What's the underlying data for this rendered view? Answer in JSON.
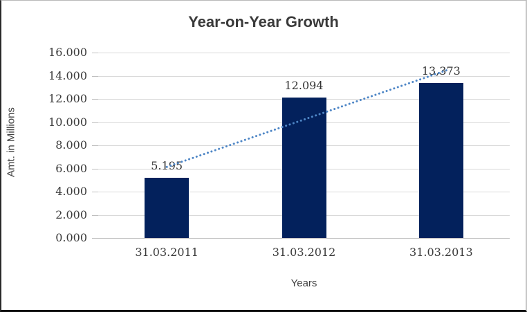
{
  "chart_data": {
    "type": "bar",
    "title": "Year-on-Year Growth",
    "xlabel": "Years",
    "ylabel": "Amt. in Millions",
    "categories": [
      "31.03.2011",
      "31.03.2012",
      "31.03.2013"
    ],
    "values": [
      5.195,
      12.094,
      13.373
    ],
    "data_labels": [
      "5.195",
      "12.094",
      "13,373"
    ],
    "y_ticks": [
      "0.000",
      "2.000",
      "4.000",
      "6.000",
      "8.000",
      "10.000",
      "12.000",
      "14.000",
      "16.000"
    ],
    "ylim": [
      0,
      16
    ],
    "y_tick_step": 2,
    "grid": "horizontal-only",
    "legend": "none",
    "bar_color": "#03215c",
    "trendline": {
      "type": "linear",
      "style": "dotted",
      "color": "#4e86c6"
    },
    "gridline_color": "#d9d9d9",
    "axis_color": "#bfbfbf",
    "title_color": "#3a3a3a",
    "label_color": "#3a3a3a"
  }
}
